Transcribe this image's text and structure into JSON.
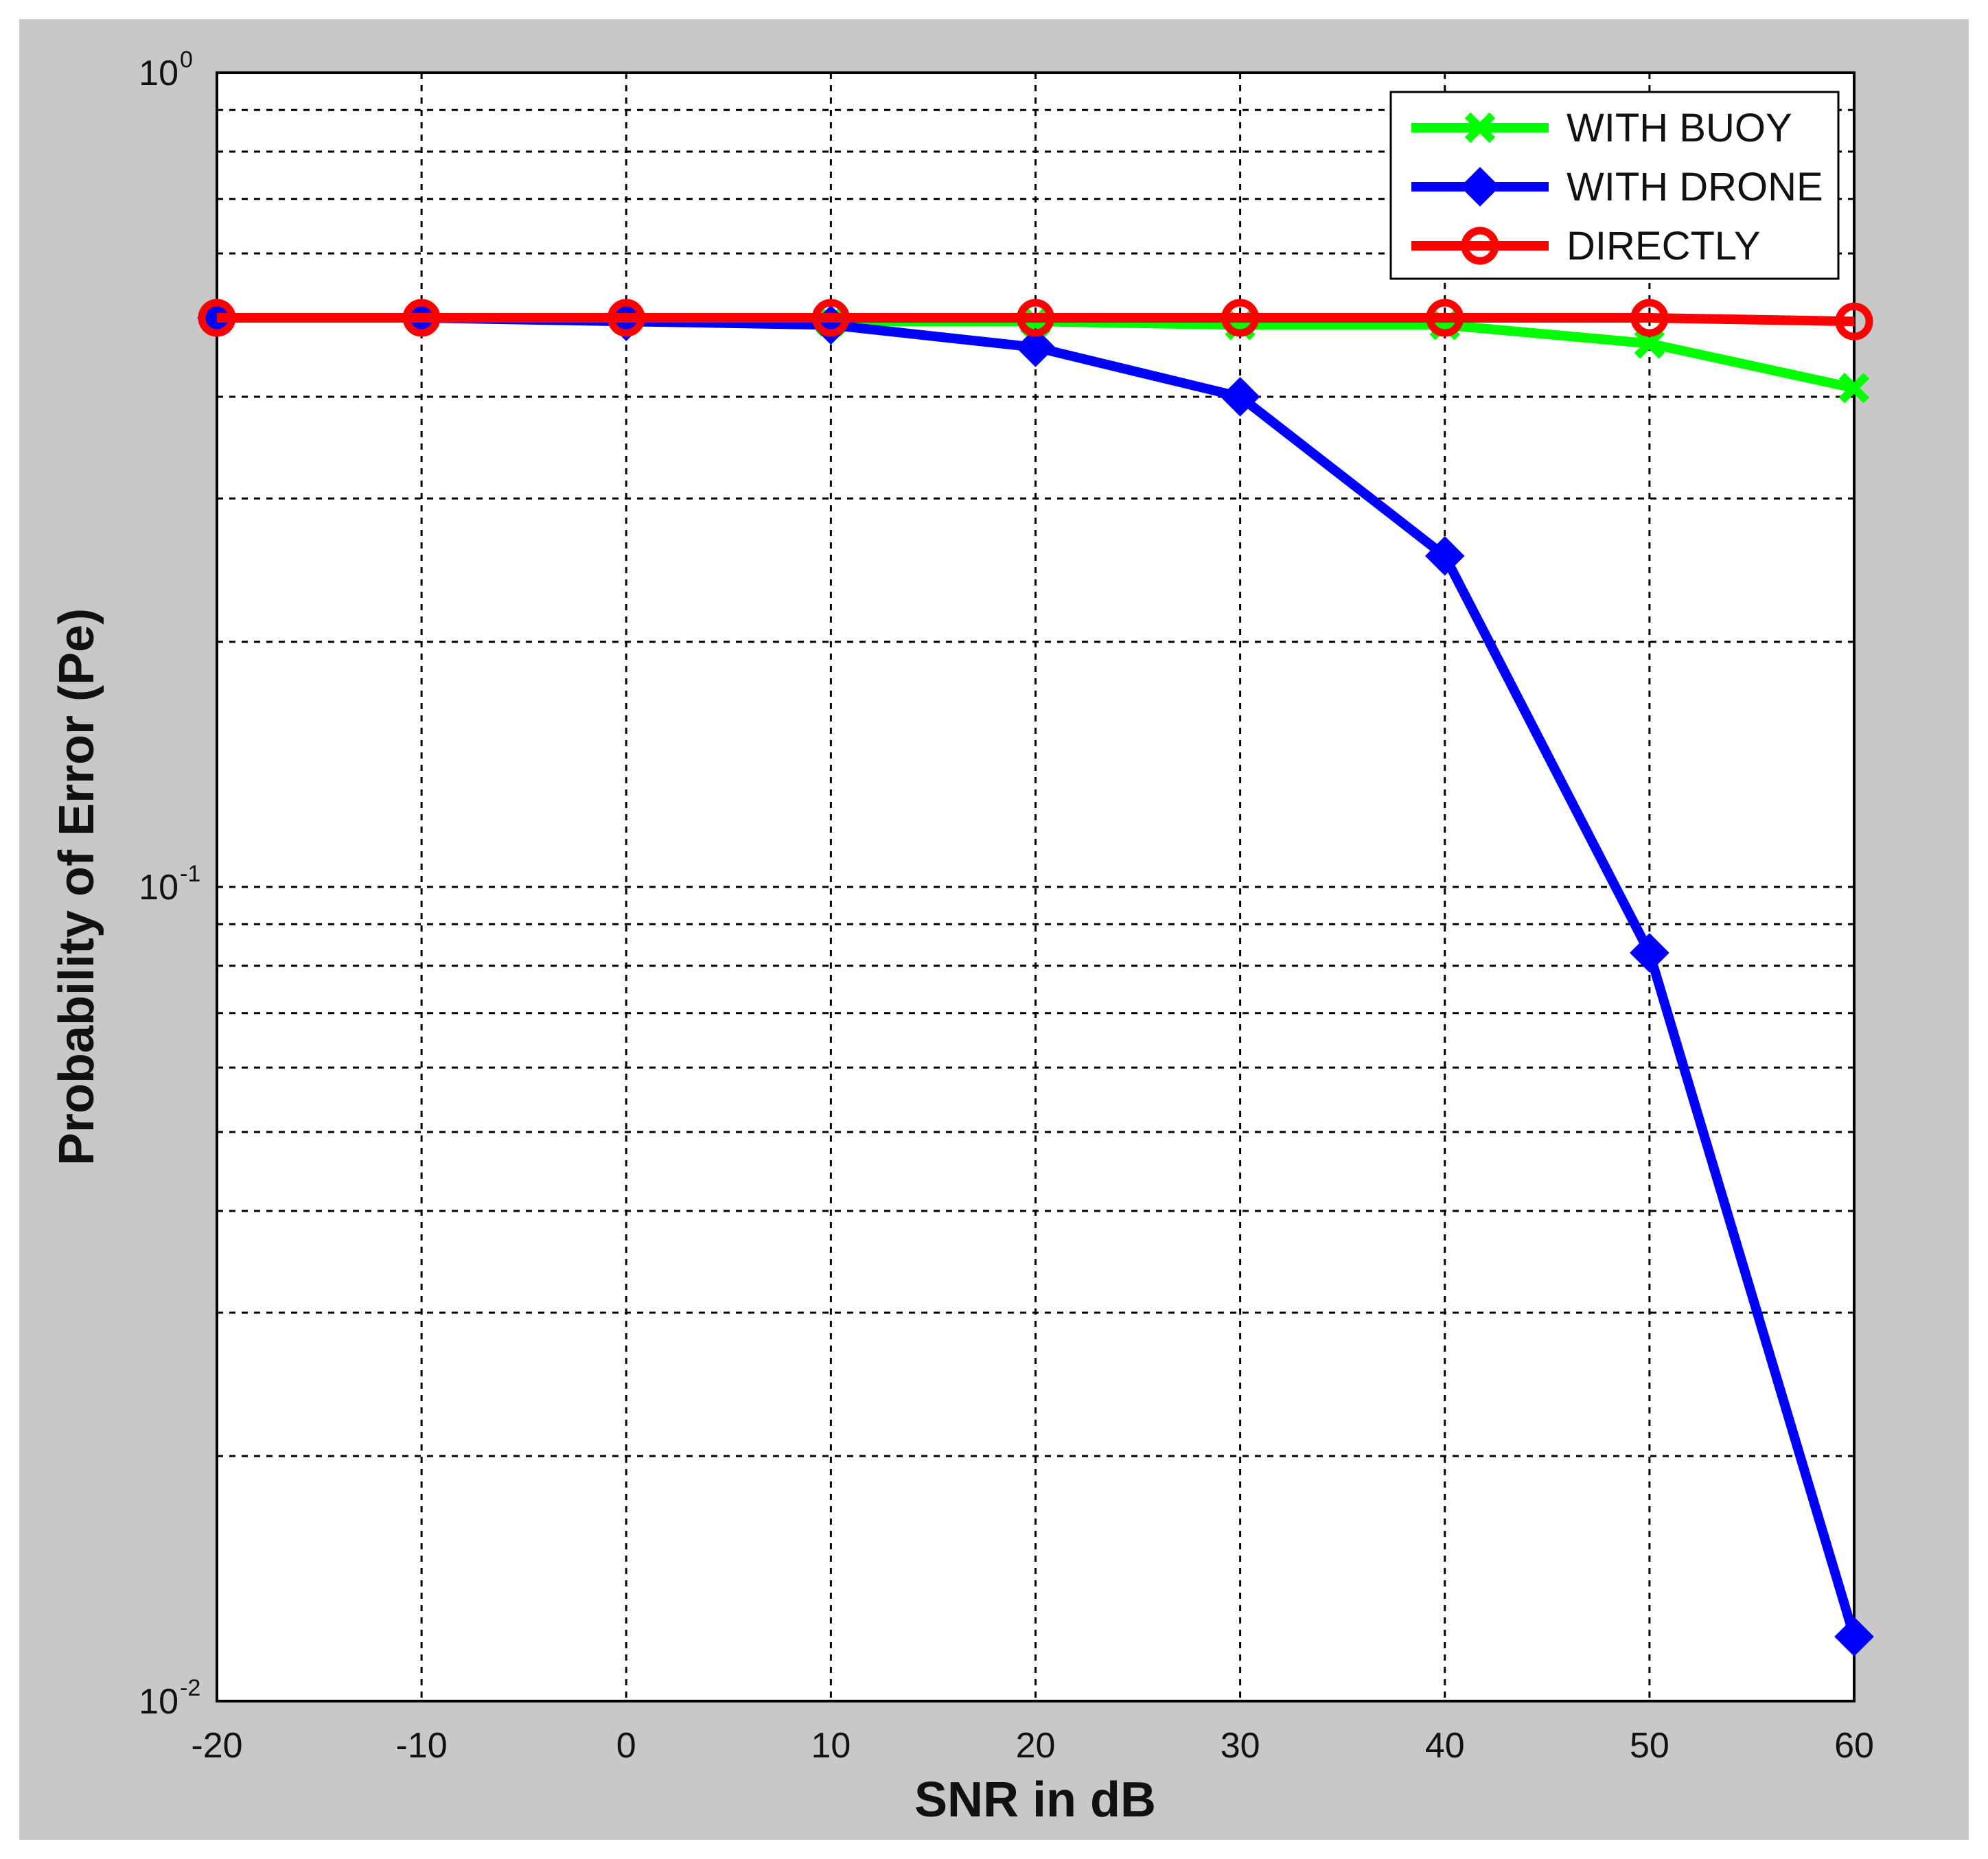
{
  "chart_data": {
    "type": "line",
    "xlabel": "SNR in dB",
    "ylabel": "Probability of Error (Pe)",
    "x": [
      -20,
      -10,
      0,
      10,
      20,
      30,
      40,
      50,
      60
    ],
    "x_tick_labels": [
      "-20",
      "-10",
      "0",
      "10",
      "20",
      "30",
      "40",
      "50",
      "60"
    ],
    "xlim": [
      -20,
      60
    ],
    "y_scale": "log",
    "ylim": [
      0.01,
      1
    ],
    "y_tick_labels": [
      {
        "base": "10",
        "exp": "0",
        "value": 1
      },
      {
        "base": "10",
        "exp": "-1",
        "value": 0.1
      },
      {
        "base": "10",
        "exp": "-2",
        "value": 0.01
      }
    ],
    "grid": true,
    "legend_position": "top-right",
    "series": [
      {
        "name": "WITH BUOY",
        "color": "#00ff00",
        "marker": "x",
        "values": [
          0.5,
          0.5,
          0.5,
          0.495,
          0.495,
          0.49,
          0.49,
          0.465,
          0.41
        ]
      },
      {
        "name": "WITH DRONE",
        "color": "#0000ff",
        "marker": "diamond",
        "values": [
          0.5,
          0.5,
          0.495,
          0.49,
          0.46,
          0.4,
          0.255,
          0.083,
          0.012
        ]
      },
      {
        "name": "DIRECTLY",
        "color": "#ff0000",
        "marker": "circle",
        "values": [
          0.5,
          0.5,
          0.5,
          0.5,
          0.5,
          0.5,
          0.5,
          0.5,
          0.495
        ]
      }
    ]
  }
}
